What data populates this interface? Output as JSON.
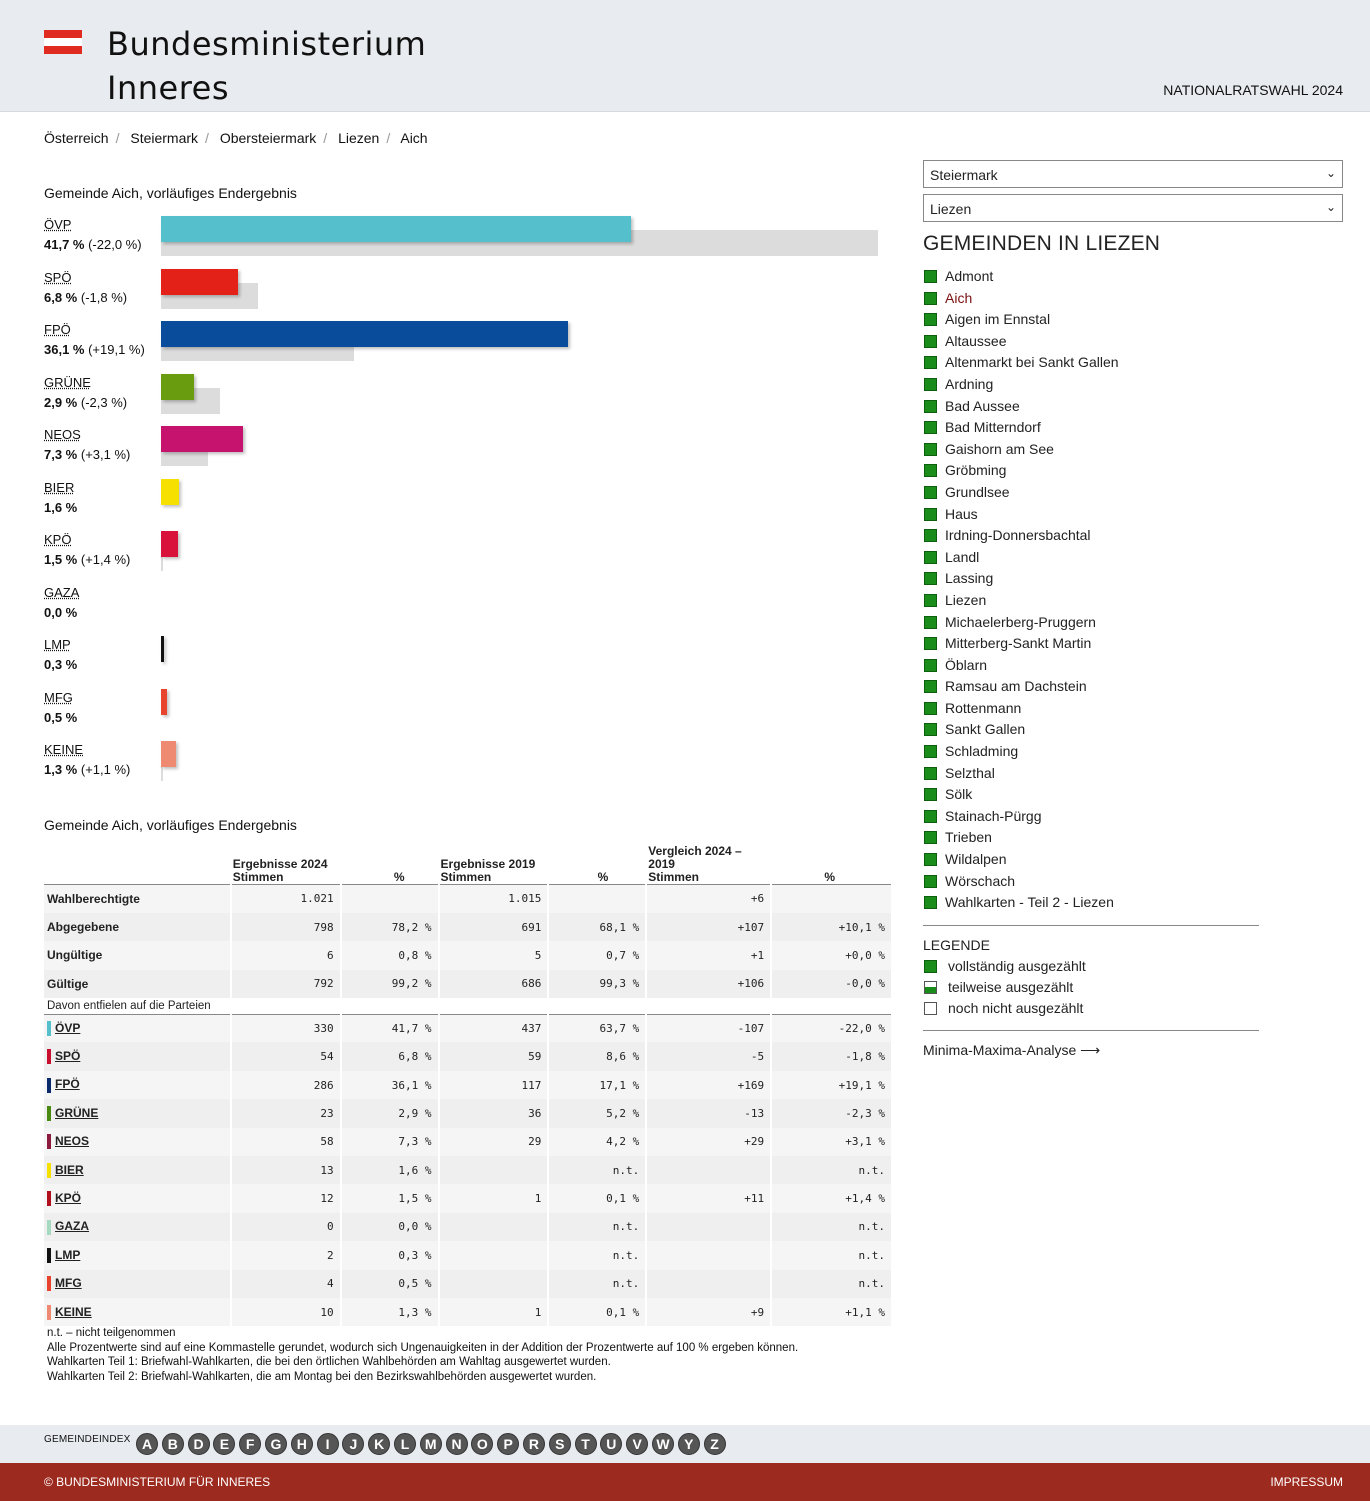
{
  "header": {
    "title_line1": "Bundesministerium",
    "title_line2": "Inneres",
    "election": "NATIONALRATSWAHL 2024",
    "flag_colors": [
      "#e02b20",
      "#ffffff",
      "#e02b20"
    ]
  },
  "breadcrumb": [
    "Österreich",
    "Steiermark",
    "Obersteiermark",
    "Liezen",
    "Aich"
  ],
  "chart_caption": "Gemeinde Aich, vorläufiges Endergebnis",
  "chart_data": {
    "type": "bar",
    "title": "Gemeinde Aich, vorläufiges Endergebnis",
    "categories": [
      "ÖVP",
      "SPÖ",
      "FPÖ",
      "GRÜNE",
      "NEOS",
      "BIER",
      "KPÖ",
      "GAZA",
      "LMP",
      "MFG",
      "KEINE"
    ],
    "series": [
      {
        "name": "2024",
        "values": [
          41.7,
          6.8,
          36.1,
          2.9,
          7.3,
          1.6,
          1.5,
          0.0,
          0.3,
          0.5,
          1.3
        ]
      },
      {
        "name": "2019",
        "values": [
          63.7,
          8.6,
          17.1,
          5.2,
          4.2,
          null,
          0.1,
          null,
          null,
          null,
          0.1
        ]
      }
    ],
    "labels": [
      {
        "name": "ÖVP",
        "text": "41,7 %",
        "diff": "(-22,0 %)"
      },
      {
        "name": "SPÖ",
        "text": "6,8 %",
        "diff": "(-1,8 %)"
      },
      {
        "name": "FPÖ",
        "text": "36,1 %",
        "diff": "(+19,1 %)"
      },
      {
        "name": "GRÜNE",
        "text": "2,9 %",
        "diff": "(-2,3 %)"
      },
      {
        "name": "NEOS",
        "text": "7,3 %",
        "diff": "(+3,1 %)"
      },
      {
        "name": "BIER",
        "text": "1,6 %",
        "diff": ""
      },
      {
        "name": "KPÖ",
        "text": "1,5 %",
        "diff": "(+1,4 %)"
      },
      {
        "name": "GAZA",
        "text": "0,0 %",
        "diff": ""
      },
      {
        "name": "LMP",
        "text": "0,3 %",
        "diff": ""
      },
      {
        "name": "MFG",
        "text": "0,5 %",
        "diff": ""
      },
      {
        "name": "KEINE",
        "text": "1,3 %",
        "diff": "(+1,1 %)"
      }
    ],
    "colors": [
      "#55bfcc",
      "#e32119",
      "#0a4c9c",
      "#6a9c0f",
      "#c6136e",
      "#f5e000",
      "#d8123a",
      "#a6dac0",
      "#111111",
      "#e8432c",
      "#ee8a72"
    ],
    "xlim": [
      0,
      65
    ]
  },
  "table": {
    "caption": "Gemeinde Aich, vorläufiges Endergebnis",
    "head": {
      "g2024": "Ergebnisse 2024",
      "g2019": "Ergebnisse 2019",
      "gcmp": "Vergleich 2024 – 2019",
      "stimmen": "Stimmen",
      "pct": "%"
    },
    "rows": [
      {
        "label": "Wahlberechtigte",
        "v24": "1.021",
        "p24": "",
        "v19": "1.015",
        "p19": "",
        "dv": "+6",
        "dp": ""
      },
      {
        "label": "Abgegebene",
        "v24": "798",
        "p24": "78,2 %",
        "v19": "691",
        "p19": "68,1 %",
        "dv": "+107",
        "dp": "+10,1 %"
      },
      {
        "label": "Ungültige",
        "v24": "6",
        "p24": "0,8 %",
        "v19": "5",
        "p19": "0,7 %",
        "dv": "+1",
        "dp": "+0,0 %"
      },
      {
        "label": "Gültige",
        "v24": "792",
        "p24": "99,2 %",
        "v19": "686",
        "p19": "99,3 %",
        "dv": "+106",
        "dp": "-0,0 %"
      }
    ],
    "davon": "Davon entfielen auf die Parteien",
    "parties": [
      {
        "label": "ÖVP",
        "color": "#55bfcc",
        "v24": "330",
        "p24": "41,7 %",
        "v19": "437",
        "p19": "63,7 %",
        "dv": "-107",
        "dp": "-22,0 %"
      },
      {
        "label": "SPÖ",
        "color": "#c8102e",
        "v24": "54",
        "p24": "6,8 %",
        "v19": "59",
        "p19": "8,6 %",
        "dv": "-5",
        "dp": "-1,8 %"
      },
      {
        "label": "FPÖ",
        "color": "#0a2a6c",
        "v24": "286",
        "p24": "36,1 %",
        "v19": "117",
        "p19": "17,1 %",
        "dv": "+169",
        "dp": "+19,1 %"
      },
      {
        "label": "GRÜNE",
        "color": "#4a8a12",
        "v24": "23",
        "p24": "2,9 %",
        "v19": "36",
        "p19": "5,2 %",
        "dv": "-13",
        "dp": "-2,3 %"
      },
      {
        "label": "NEOS",
        "color": "#8c1a3c",
        "v24": "58",
        "p24": "7,3 %",
        "v19": "29",
        "p19": "4,2 %",
        "dv": "+29",
        "dp": "+3,1 %"
      },
      {
        "label": "BIER",
        "color": "#f5e000",
        "v24": "13",
        "p24": "1,6 %",
        "v19": "",
        "p19": "n.t.",
        "dv": "",
        "dp": "n.t."
      },
      {
        "label": "KPÖ",
        "color": "#b0101e",
        "v24": "12",
        "p24": "1,5 %",
        "v19": "1",
        "p19": "0,1 %",
        "dv": "+11",
        "dp": "+1,4 %"
      },
      {
        "label": "GAZA",
        "color": "#a6dac0",
        "v24": "0",
        "p24": "0,0 %",
        "v19": "",
        "p19": "n.t.",
        "dv": "",
        "dp": "n.t."
      },
      {
        "label": "LMP",
        "color": "#111111",
        "v24": "2",
        "p24": "0,3 %",
        "v19": "",
        "p19": "n.t.",
        "dv": "",
        "dp": "n.t."
      },
      {
        "label": "MFG",
        "color": "#e8432c",
        "v24": "4",
        "p24": "0,5 %",
        "v19": "",
        "p19": "n.t.",
        "dv": "",
        "dp": "n.t."
      },
      {
        "label": "KEINE",
        "color": "#ee8a72",
        "v24": "10",
        "p24": "1,3 %",
        "v19": "1",
        "p19": "0,1 %",
        "dv": "+9",
        "dp": "+1,1 %"
      }
    ]
  },
  "notes": [
    "n.t. – nicht teilgenommen",
    "Alle Prozentwerte sind auf eine Kommastelle gerundet, wodurch sich Ungenauigkeiten in der Addition der Prozentwerte auf 100 % ergeben können.",
    "Wahlkarten Teil 1: Briefwahl-Wahlkarten, die bei den örtlichen Wahlbehörden am Wahltag ausgewertet wurden.",
    "Wahlkarten Teil 2: Briefwahl-Wahlkarten, die am Montag bei den Bezirkswahlbehörden ausgewertet wurden."
  ],
  "sidebar": {
    "select_state": "Steiermark",
    "select_district": "Liezen",
    "title": "GEMEINDEN IN LIEZEN",
    "gemeinden": [
      "Admont",
      "Aich",
      "Aigen im Ennstal",
      "Altaussee",
      "Altenmarkt bei Sankt Gallen",
      "Ardning",
      "Bad Aussee",
      "Bad Mitterndorf",
      "Gaishorn am See",
      "Gröbming",
      "Grundlsee",
      "Haus",
      "Irdning-Donnersbachtal",
      "Landl",
      "Lassing",
      "Liezen",
      "Michaelerberg-Pruggern",
      "Mitterberg-Sankt Martin",
      "Öblarn",
      "Ramsau am Dachstein",
      "Rottenmann",
      "Sankt Gallen",
      "Schladming",
      "Selzthal",
      "Sölk",
      "Stainach-Pürgg",
      "Trieben",
      "Wildalpen",
      "Wörschach",
      "Wahlkarten - Teil 2 - Liezen"
    ],
    "active": "Aich",
    "legend_title": "LEGENDE",
    "legend": [
      "vollständig ausgezählt",
      "teilweise ausgezählt",
      "noch nicht ausgezählt"
    ],
    "minmax": "Minima-Maxima-Analyse",
    "status_color": "#1a8c1a"
  },
  "index": {
    "label": "GEMEINDEINDEX",
    "letters": [
      "A",
      "B",
      "D",
      "E",
      "F",
      "G",
      "H",
      "I",
      "J",
      "K",
      "L",
      "M",
      "N",
      "O",
      "P",
      "R",
      "S",
      "T",
      "U",
      "V",
      "W",
      "Y",
      "Z"
    ]
  },
  "footer": {
    "left": "© BUNDESMINISTERIUM FÜR INNERES",
    "right": "IMPRESSUM"
  }
}
